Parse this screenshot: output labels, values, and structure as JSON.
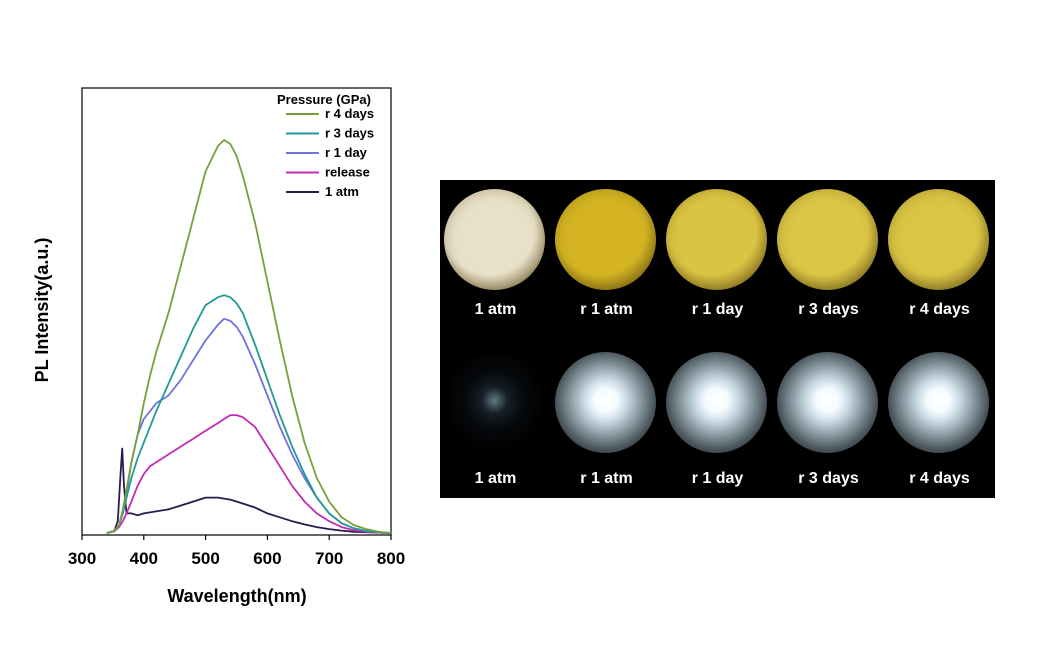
{
  "chart_data": {
    "type": "line",
    "xlabel": "Wavelength(nm)",
    "ylabel": "PL Intensity(a.u.)",
    "xlim": [
      300,
      800
    ],
    "ylim": [
      0,
      1.0
    ],
    "xticks": [
      300,
      400,
      500,
      600,
      700,
      800
    ],
    "yticks_shown": false,
    "legend_title": "Pressure (GPa)",
    "legend_position": "top-right",
    "series": [
      {
        "name": "r 4 days",
        "color": "#76a13a",
        "x": [
          340,
          352,
          360,
          366,
          372,
          380,
          390,
          400,
          410,
          420,
          440,
          460,
          480,
          500,
          520,
          530,
          540,
          550,
          560,
          580,
          600,
          620,
          640,
          660,
          680,
          700,
          720,
          740,
          760,
          780,
          800
        ],
        "y": [
          0,
          0.005,
          0.02,
          0.06,
          0.11,
          0.18,
          0.25,
          0.33,
          0.4,
          0.46,
          0.56,
          0.68,
          0.8,
          0.92,
          0.985,
          1.0,
          0.99,
          0.96,
          0.91,
          0.79,
          0.64,
          0.49,
          0.35,
          0.23,
          0.14,
          0.08,
          0.04,
          0.02,
          0.01,
          0.003,
          0
        ]
      },
      {
        "name": "r 3 days",
        "color": "#1f9a96",
        "x": [
          340,
          352,
          360,
          366,
          372,
          380,
          390,
          400,
          410,
          420,
          440,
          460,
          480,
          500,
          520,
          530,
          540,
          550,
          560,
          580,
          600,
          620,
          640,
          660,
          680,
          700,
          720,
          740,
          760,
          780,
          800
        ],
        "y": [
          0,
          0.005,
          0.02,
          0.05,
          0.09,
          0.14,
          0.19,
          0.23,
          0.27,
          0.31,
          0.38,
          0.45,
          0.52,
          0.58,
          0.6,
          0.605,
          0.6,
          0.585,
          0.56,
          0.48,
          0.39,
          0.3,
          0.22,
          0.15,
          0.09,
          0.05,
          0.025,
          0.012,
          0.005,
          0.002,
          0
        ]
      },
      {
        "name": "r 1 day",
        "color": "#6f73e0",
        "x": [
          340,
          352,
          360,
          366,
          372,
          380,
          390,
          400,
          410,
          420,
          440,
          460,
          480,
          500,
          520,
          530,
          540,
          550,
          560,
          580,
          600,
          620,
          640,
          660,
          680,
          700,
          720,
          740,
          760,
          780,
          800
        ],
        "y": [
          0,
          0.005,
          0.02,
          0.05,
          0.1,
          0.18,
          0.25,
          0.29,
          0.31,
          0.33,
          0.35,
          0.39,
          0.44,
          0.49,
          0.53,
          0.545,
          0.54,
          0.525,
          0.5,
          0.43,
          0.35,
          0.27,
          0.2,
          0.14,
          0.09,
          0.05,
          0.025,
          0.012,
          0.005,
          0.002,
          0
        ]
      },
      {
        "name": "release",
        "color": "#c42bb2",
        "x": [
          340,
          352,
          360,
          366,
          372,
          380,
          390,
          400,
          410,
          420,
          440,
          460,
          480,
          500,
          520,
          530,
          540,
          550,
          560,
          580,
          600,
          620,
          640,
          660,
          680,
          700,
          720,
          740,
          760,
          780,
          800
        ],
        "y": [
          0,
          0.004,
          0.015,
          0.03,
          0.05,
          0.08,
          0.12,
          0.15,
          0.17,
          0.18,
          0.2,
          0.22,
          0.24,
          0.26,
          0.28,
          0.29,
          0.3,
          0.3,
          0.295,
          0.27,
          0.22,
          0.17,
          0.12,
          0.08,
          0.05,
          0.03,
          0.015,
          0.007,
          0.003,
          0.001,
          0
        ]
      },
      {
        "name": "1 atm",
        "color": "#2c1a4e",
        "x": [
          340,
          352,
          358,
          362,
          365,
          368,
          372,
          380,
          390,
          400,
          420,
          440,
          460,
          480,
          500,
          520,
          540,
          560,
          580,
          600,
          620,
          640,
          660,
          680,
          700,
          720,
          740,
          760,
          780,
          800
        ],
        "y": [
          0,
          0.004,
          0.03,
          0.14,
          0.215,
          0.12,
          0.05,
          0.05,
          0.045,
          0.05,
          0.055,
          0.06,
          0.07,
          0.08,
          0.09,
          0.09,
          0.085,
          0.075,
          0.065,
          0.05,
          0.04,
          0.03,
          0.022,
          0.015,
          0.01,
          0.006,
          0.003,
          0.002,
          0.001,
          0
        ]
      }
    ]
  },
  "photo_panel": {
    "rows": [
      {
        "kind": "bright-field",
        "items": [
          {
            "label": "1 atm",
            "color": "#e8e0c8"
          },
          {
            "label": "r 1 atm",
            "color": "#d4b423"
          },
          {
            "label": "r 1 day",
            "color": "#dcc443"
          },
          {
            "label": "r 3 days",
            "color": "#dcc646"
          },
          {
            "label": "r 4 days",
            "color": "#dac544"
          }
        ]
      },
      {
        "kind": "photoluminescence",
        "items": [
          {
            "label": "1 atm",
            "intensity": 0.15
          },
          {
            "label": "r 1 atm",
            "intensity": 1.0
          },
          {
            "label": "r 1 day",
            "intensity": 0.95
          },
          {
            "label": "r 3 days",
            "intensity": 0.9
          },
          {
            "label": "r 4 days",
            "intensity": 0.95
          }
        ]
      }
    ]
  }
}
